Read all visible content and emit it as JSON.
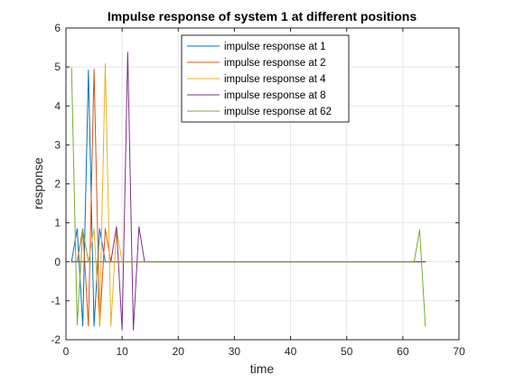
{
  "chart_data": {
    "type": "line",
    "title": "Impulse response of system 1 at different positions",
    "xlabel": "time",
    "ylabel": "response",
    "xlim": [
      0,
      70
    ],
    "ylim": [
      -2,
      6
    ],
    "xticks": [
      0,
      10,
      20,
      30,
      40,
      50,
      60,
      70
    ],
    "yticks": [
      -2,
      -1,
      0,
      1,
      2,
      3,
      4,
      5,
      6
    ],
    "grid": true,
    "legend_position": "top-center",
    "series": [
      {
        "name": "impulse response at 1",
        "color": "#0072BD",
        "x": [
          1,
          2,
          3,
          4,
          5,
          6,
          7,
          64
        ],
        "y": [
          0,
          0.85,
          -1.65,
          4.92,
          -1.65,
          0.85,
          0,
          0
        ]
      },
      {
        "name": "impulse response at 2",
        "color": "#D95319",
        "x": [
          1,
          2,
          3,
          4,
          5,
          6,
          7,
          8,
          64
        ],
        "y": [
          0,
          0,
          0.85,
          -1.65,
          4.95,
          -1.65,
          0.85,
          0,
          0
        ]
      },
      {
        "name": "impulse response at 4",
        "color": "#EDB120",
        "x": [
          1,
          2,
          3,
          4,
          5,
          6,
          7,
          8,
          9,
          10,
          64
        ],
        "y": [
          0,
          0,
          0,
          0,
          0.85,
          -1.65,
          5.08,
          -1.65,
          0.85,
          0,
          0
        ]
      },
      {
        "name": "impulse response at 8",
        "color": "#7E2F8E",
        "x": [
          1,
          2,
          3,
          4,
          5,
          6,
          7,
          8,
          9,
          10,
          11,
          12,
          13,
          14,
          64
        ],
        "y": [
          0,
          0,
          0,
          0,
          0,
          0,
          0,
          0,
          0.9,
          -1.75,
          5.38,
          -1.75,
          0.9,
          0,
          0
        ]
      },
      {
        "name": "impulse response at 62",
        "color": "#77AC30",
        "x": [
          1,
          2,
          3,
          4,
          5,
          6,
          7,
          8,
          9,
          10,
          11,
          12,
          13,
          14,
          15,
          16,
          17,
          18,
          19,
          20,
          21,
          22,
          23,
          24,
          25,
          26,
          27,
          28,
          29,
          30,
          31,
          32,
          33,
          34,
          35,
          36,
          37,
          38,
          39,
          40,
          41,
          42,
          43,
          44,
          45,
          46,
          47,
          48,
          49,
          50,
          51,
          52,
          53,
          54,
          55,
          56,
          57,
          58,
          59,
          60,
          61,
          62,
          63,
          64
        ],
        "y": [
          4.98,
          -1.62,
          0.82,
          0,
          0,
          0,
          0,
          0,
          0,
          0,
          0,
          0,
          0,
          0,
          0,
          0,
          0,
          0,
          0,
          0,
          0,
          0,
          0,
          0,
          0,
          0,
          0,
          0,
          0,
          0,
          0,
          0,
          0,
          0,
          0,
          0,
          0,
          0,
          0,
          0,
          0,
          0,
          0,
          0,
          0,
          0,
          0,
          0,
          0,
          0,
          0,
          0,
          0,
          0,
          0,
          0,
          0,
          0,
          0,
          0,
          0,
          0,
          0.82,
          -1.65
        ]
      }
    ]
  }
}
